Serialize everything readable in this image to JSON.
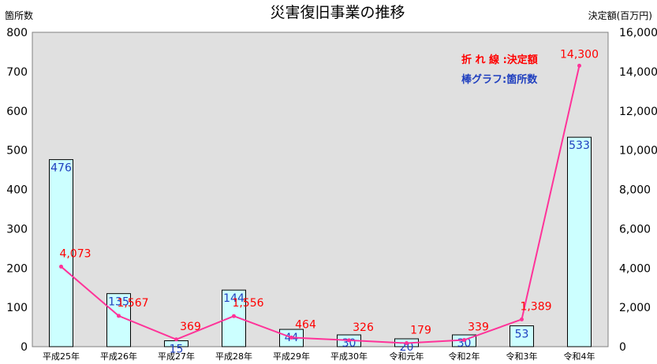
{
  "chart_data": {
    "type": "bar",
    "title": "災害復旧事業の推移",
    "left_axis_label": "箇所数",
    "right_axis_label": "決定額(百万円)",
    "categories": [
      "平成25年",
      "平成26年",
      "平成27年",
      "平成28年",
      "平成29年",
      "平成30年",
      "令和元年",
      "令和2年",
      "令和3年",
      "令和4年"
    ],
    "ylim_left": [
      0,
      800
    ],
    "ylim_right": [
      0,
      16000
    ],
    "yticks_left": [
      "0",
      "100",
      "200",
      "300",
      "400",
      "500",
      "600",
      "700",
      "800"
    ],
    "yticks_right": [
      "0",
      "2,000",
      "4,000",
      "6,000",
      "8,000",
      "10,000",
      "12,000",
      "14,000",
      "16,000"
    ],
    "series": [
      {
        "name": "箇所数",
        "chart_type": "bar",
        "axis": "left",
        "values": [
          476,
          135,
          15,
          144,
          44,
          30,
          20,
          30,
          53,
          533
        ],
        "labels": [
          "476",
          "135",
          "15",
          "144",
          "44",
          "30",
          "20",
          "30",
          "53",
          "533"
        ]
      },
      {
        "name": "決定額",
        "chart_type": "line",
        "axis": "right",
        "values": [
          4073,
          1567,
          369,
          1556,
          464,
          326,
          179,
          339,
          1389,
          14300
        ],
        "labels": [
          "4,073",
          "1,567",
          "369",
          "1,556",
          "464",
          "326",
          "179",
          "339",
          "1,389",
          "14,300"
        ]
      }
    ],
    "legend": {
      "line_text": "折 れ 線 :決定額",
      "bar_text": "棒グラフ:箇所数",
      "placement": "top-right"
    },
    "grid": false,
    "colors": {
      "plot_background": "#e0e0e0",
      "bar_fill": "#ccffff",
      "bar_stroke": "#000000",
      "line": "#ff3399",
      "line_label": "#ff0000",
      "bar_label": "#1f3fbf"
    }
  }
}
